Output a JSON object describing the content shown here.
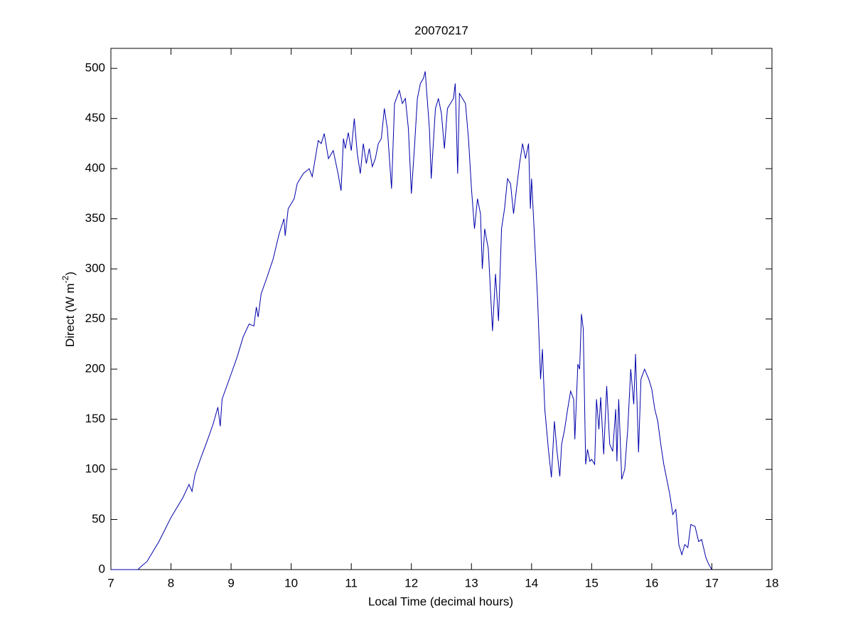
{
  "chart_data": {
    "type": "line",
    "title": "20070217",
    "xlabel": "Local Time (decimal hours)",
    "ylabel": [
      "Direct (W m",
      "-2",
      ")"
    ],
    "xlim": [
      7,
      18
    ],
    "xticks": [
      7,
      8,
      9,
      10,
      11,
      12,
      13,
      14,
      15,
      16,
      17,
      18
    ],
    "ylim": [
      0,
      520
    ],
    "yticks": [
      0,
      50,
      100,
      150,
      200,
      250,
      300,
      350,
      400,
      450,
      500
    ],
    "grid": false,
    "series": [
      {
        "color": "#0000aa",
        "x": [
          7.0,
          7.2,
          7.45,
          7.5,
          7.6,
          7.7,
          7.8,
          7.9,
          8.0,
          8.1,
          8.2,
          8.3,
          8.35,
          8.4,
          8.5,
          8.6,
          8.7,
          8.78,
          8.82,
          8.85,
          9.0,
          9.1,
          9.2,
          9.3,
          9.38,
          9.42,
          9.45,
          9.5,
          9.6,
          9.7,
          9.8,
          9.88,
          9.9,
          9.95,
          10.05,
          10.1,
          10.2,
          10.3,
          10.35,
          10.45,
          10.5,
          10.55,
          10.62,
          10.7,
          10.78,
          10.83,
          10.87,
          10.9,
          10.95,
          11.0,
          11.05,
          11.1,
          11.15,
          11.2,
          11.25,
          11.3,
          11.35,
          11.4,
          11.45,
          11.5,
          11.55,
          11.6,
          11.67,
          11.72,
          11.8,
          11.85,
          11.9,
          11.95,
          12.0,
          12.05,
          12.1,
          12.15,
          12.2,
          12.23,
          12.3,
          12.33,
          12.4,
          12.45,
          12.5,
          12.55,
          12.6,
          12.7,
          12.73,
          12.77,
          12.8,
          12.9,
          12.95,
          13.0,
          13.05,
          13.1,
          13.15,
          13.18,
          13.22,
          13.28,
          13.35,
          13.4,
          13.45,
          13.5,
          13.55,
          13.6,
          13.65,
          13.7,
          13.75,
          13.8,
          13.85,
          13.9,
          13.95,
          13.98,
          14.0,
          14.05,
          14.1,
          14.15,
          14.18,
          14.22,
          14.28,
          14.33,
          14.38,
          14.42,
          14.47,
          14.5,
          14.55,
          14.6,
          14.65,
          14.7,
          14.72,
          14.77,
          14.8,
          14.83,
          14.86,
          14.9,
          14.93,
          14.97,
          15.0,
          15.05,
          15.08,
          15.12,
          15.15,
          15.2,
          15.25,
          15.3,
          15.35,
          15.4,
          15.42,
          15.45,
          15.5,
          15.55,
          15.6,
          15.65,
          15.7,
          15.73,
          15.78,
          15.82,
          15.88,
          15.95,
          16.0,
          16.05,
          16.1,
          16.15,
          16.2,
          16.3,
          16.35,
          16.4,
          16.45,
          16.5,
          16.55,
          16.6,
          16.65,
          16.72,
          16.78,
          16.83,
          16.9,
          16.95,
          17.0
        ],
        "values": [
          0,
          0,
          0,
          3,
          8,
          18,
          28,
          40,
          52,
          62,
          72,
          85,
          78,
          95,
          112,
          128,
          145,
          162,
          143,
          170,
          195,
          212,
          232,
          245,
          243,
          262,
          252,
          275,
          292,
          310,
          335,
          350,
          333,
          360,
          370,
          385,
          395,
          400,
          392,
          428,
          425,
          435,
          410,
          418,
          395,
          378,
          430,
          420,
          436,
          418,
          450,
          415,
          395,
          425,
          405,
          420,
          402,
          410,
          425,
          430,
          460,
          440,
          380,
          465,
          478,
          465,
          470,
          440,
          375,
          420,
          470,
          485,
          490,
          497,
          440,
          390,
          460,
          470,
          455,
          420,
          460,
          470,
          485,
          395,
          475,
          465,
          430,
          380,
          340,
          370,
          355,
          300,
          340,
          320,
          238,
          295,
          248,
          340,
          360,
          390,
          385,
          355,
          380,
          405,
          425,
          410,
          425,
          360,
          390,
          330,
          270,
          190,
          220,
          160,
          120,
          92,
          148,
          120,
          93,
          125,
          140,
          160,
          178,
          170,
          130,
          205,
          200,
          255,
          240,
          105,
          120,
          108,
          110,
          105,
          170,
          140,
          172,
          115,
          183,
          125,
          118,
          160,
          108,
          170,
          90,
          100,
          140,
          200,
          165,
          215,
          117,
          190,
          200,
          190,
          180,
          160,
          148,
          125,
          105,
          75,
          55,
          60,
          25,
          15,
          25,
          22,
          45,
          43,
          28,
          30,
          12,
          5,
          0
        ]
      }
    ]
  }
}
